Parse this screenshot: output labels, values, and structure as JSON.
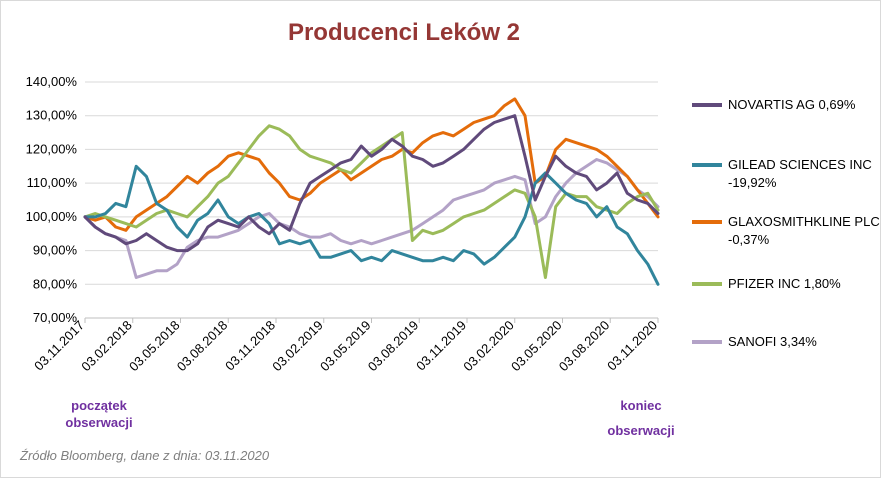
{
  "chart_data": {
    "type": "line",
    "title": "Producenci Leków 2",
    "y_ticks": [
      "70,00%",
      "80,00%",
      "90,00%",
      "100,00%",
      "110,00%",
      "120,00%",
      "130,00%",
      "140,00%"
    ],
    "ylim": [
      70,
      140
    ],
    "x_ticks": [
      "03.11.2017",
      "03.02.2018",
      "03.05.2018",
      "03.08.2018",
      "03.11.2018",
      "03.02.2019",
      "03.05.2019",
      "03.08.2019",
      "03.11.2019",
      "03.02.2020",
      "03.05.2020",
      "03.08.2020",
      "03.11.2020"
    ],
    "grid": true,
    "legend_position": "right",
    "series": [
      {
        "name": "NOVARTIS AG 0,69%",
        "color": "#604a7b",
        "values": [
          100,
          97,
          95,
          94,
          92,
          93,
          95,
          93,
          91,
          90,
          90,
          92,
          97,
          99,
          98,
          97,
          100,
          97,
          95,
          98,
          96,
          104,
          110,
          112,
          114,
          116,
          117,
          121,
          118,
          120,
          123,
          121,
          118,
          117,
          115,
          116,
          118,
          120,
          123,
          126,
          128,
          129,
          130,
          118,
          105,
          112,
          118,
          115,
          113,
          112,
          108,
          110,
          113,
          107,
          105,
          104,
          101
        ]
      },
      {
        "name": "GILEAD SCIENCES INC -19,92%",
        "color": "#31859c",
        "values": [
          100,
          100,
          101,
          104,
          103,
          115,
          112,
          104,
          102,
          97,
          94,
          99,
          101,
          105,
          100,
          98,
          100,
          101,
          98,
          92,
          93,
          92,
          93,
          88,
          88,
          89,
          90,
          87,
          88,
          87,
          90,
          89,
          88,
          87,
          87,
          88,
          87,
          90,
          89,
          86,
          88,
          91,
          94,
          100,
          110,
          113,
          110,
          107,
          105,
          104,
          100,
          103,
          97,
          95,
          90,
          86,
          80
        ]
      },
      {
        "name": "GLAXOSMITHKLINE PLC -0,37%",
        "color": "#e46c0a",
        "values": [
          100,
          99,
          100,
          97,
          96,
          100,
          102,
          104,
          106,
          109,
          112,
          110,
          113,
          115,
          118,
          119,
          118,
          117,
          113,
          110,
          106,
          105,
          107,
          110,
          112,
          114,
          111,
          113,
          115,
          117,
          118,
          120,
          119,
          122,
          124,
          125,
          124,
          126,
          128,
          129,
          130,
          133,
          135,
          130,
          110,
          112,
          120,
          123,
          122,
          121,
          120,
          118,
          115,
          112,
          108,
          104,
          100
        ]
      },
      {
        "name": "PFIZER INC 1,80%",
        "color": "#9bbb59",
        "values": [
          100,
          101,
          100,
          99,
          98,
          97,
          99,
          101,
          102,
          101,
          100,
          103,
          106,
          110,
          112,
          116,
          120,
          124,
          127,
          126,
          124,
          120,
          118,
          117,
          116,
          114,
          113,
          116,
          119,
          121,
          123,
          125,
          93,
          96,
          95,
          96,
          98,
          100,
          101,
          102,
          104,
          106,
          108,
          107,
          100,
          82,
          103,
          107,
          106,
          106,
          103,
          102,
          101,
          104,
          106,
          107,
          102
        ]
      },
      {
        "name": "SANOFI 3,34%",
        "color": "#b3a2c7",
        "values": [
          100,
          97,
          95,
          94,
          93,
          82,
          83,
          84,
          84,
          86,
          91,
          93,
          94,
          94,
          95,
          96,
          98,
          100,
          101,
          98,
          97,
          95,
          94,
          94,
          95,
          93,
          92,
          93,
          92,
          93,
          94,
          95,
          96,
          98,
          100,
          102,
          105,
          106,
          107,
          108,
          110,
          111,
          112,
          111,
          98,
          100,
          106,
          110,
          113,
          115,
          117,
          116,
          114,
          112,
          108,
          106,
          103
        ]
      }
    ]
  },
  "notes": {
    "start_line1": "początek",
    "start_line2": "obserwacji",
    "end_line1": "koniec",
    "end_line2": "obserwacji"
  },
  "source": "Źródło Bloomberg, dane z dnia: 03.11.2020"
}
